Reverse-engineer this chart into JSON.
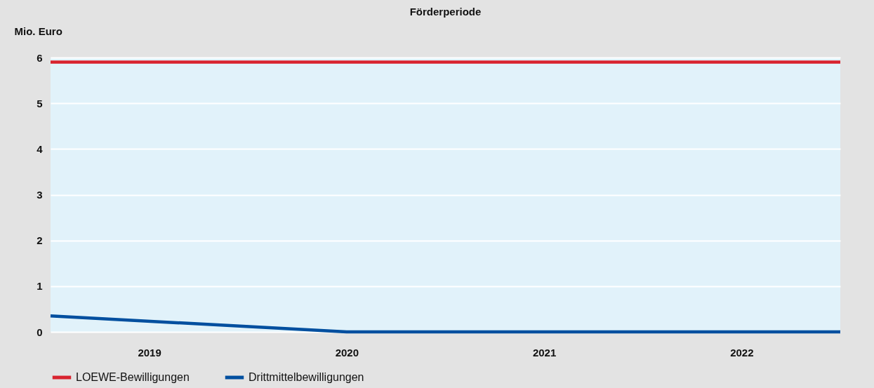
{
  "chart_data": {
    "type": "line",
    "title": "Förderperiode",
    "ylabel": "Mio. Euro",
    "xlim": [
      2018.5,
      2022.5
    ],
    "xticks": [
      2019,
      2020,
      2021,
      2022
    ],
    "ylim": [
      0,
      6
    ],
    "yticks": [
      0,
      1,
      2,
      3,
      4,
      5,
      6
    ],
    "grid": "y",
    "legend": "bottom",
    "line_style": "solid",
    "series": [
      {
        "name": "LOEWE-Bewilligungen",
        "color": "#d8232f",
        "x": [
          2018.5,
          2022.5
        ],
        "values": [
          5.9,
          5.9
        ]
      },
      {
        "name": "Drittmittelbewilligungen",
        "color": "#004f9f",
        "x": [
          2018.5,
          2020,
          2021,
          2022,
          2022.5
        ],
        "values": [
          0.35,
          0,
          0,
          0,
          0
        ]
      }
    ]
  }
}
